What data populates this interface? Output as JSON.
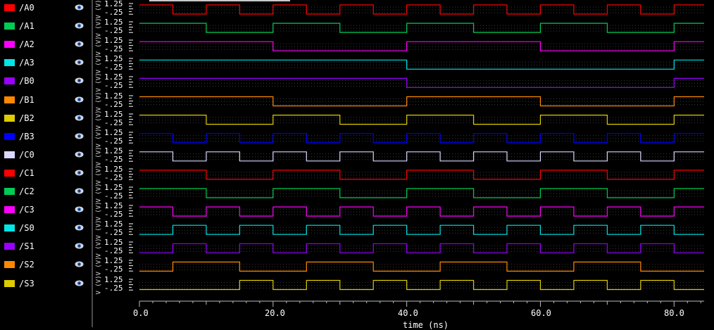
{
  "signals": [
    {
      "name": "/A0",
      "color": "#ff0000",
      "period": 10,
      "phase": 0,
      "start_high": true
    },
    {
      "name": "/A1",
      "color": "#00cc55",
      "period": 20,
      "phase": 0,
      "start_high": true
    },
    {
      "name": "/A2",
      "color": "#ff00ff",
      "period": 40,
      "phase": 0,
      "start_high": true
    },
    {
      "name": "/A3",
      "color": "#00e5e5",
      "period": 80,
      "phase": 0,
      "start_high": true
    },
    {
      "name": "/B0",
      "color": "#9900ff",
      "period": 80,
      "phase": 0,
      "start_high": true
    },
    {
      "name": "/B1",
      "color": "#ff8800",
      "period": 40,
      "phase": 0,
      "start_high": true
    },
    {
      "name": "/B2",
      "color": "#ddcc00",
      "period": 20,
      "phase": 0,
      "start_high": true
    },
    {
      "name": "/B3",
      "color": "#0000ff",
      "period": 10,
      "phase": 0,
      "start_high": true
    },
    {
      "name": "/C0",
      "color": "#d8d8ff",
      "period": 10,
      "phase": 0,
      "start_high": true
    },
    {
      "name": "/C1",
      "color": "#ff0000",
      "period": 20,
      "phase": 0,
      "start_high": true
    },
    {
      "name": "/C2",
      "color": "#00cc55",
      "period": 20,
      "phase": 0,
      "start_high": true
    },
    {
      "name": "/C3",
      "color": "#ff00ff",
      "period": 10,
      "phase": 0,
      "start_high": true
    },
    {
      "name": "/S0",
      "color": "#00e5e5",
      "period": 10,
      "phase": 5,
      "start_high": false
    },
    {
      "name": "/S1",
      "color": "#9900ff",
      "period": 10,
      "phase": 5,
      "start_high": false
    },
    {
      "name": "/S2",
      "color": "#ff8800",
      "period": 20,
      "phase": 5,
      "start_high": false
    },
    {
      "name": "/S3",
      "color": "#ddcc00",
      "period": 10,
      "phase": 15,
      "start_high": false
    }
  ],
  "vlabel": "V (V)",
  "y_hi_label": "1.25",
  "y_lo_label": "-.25",
  "icons": {
    "visibility": "eye-icon"
  },
  "x_axis": {
    "label": "time (ns)",
    "ticks": [
      "0.0",
      "20.0",
      "40.0",
      "60.0",
      "80.0"
    ],
    "range": [
      0,
      84.5
    ]
  },
  "colors": {
    "background": "#000000",
    "grid": "#3a3a3a",
    "separator": "#4a4a4a"
  }
}
